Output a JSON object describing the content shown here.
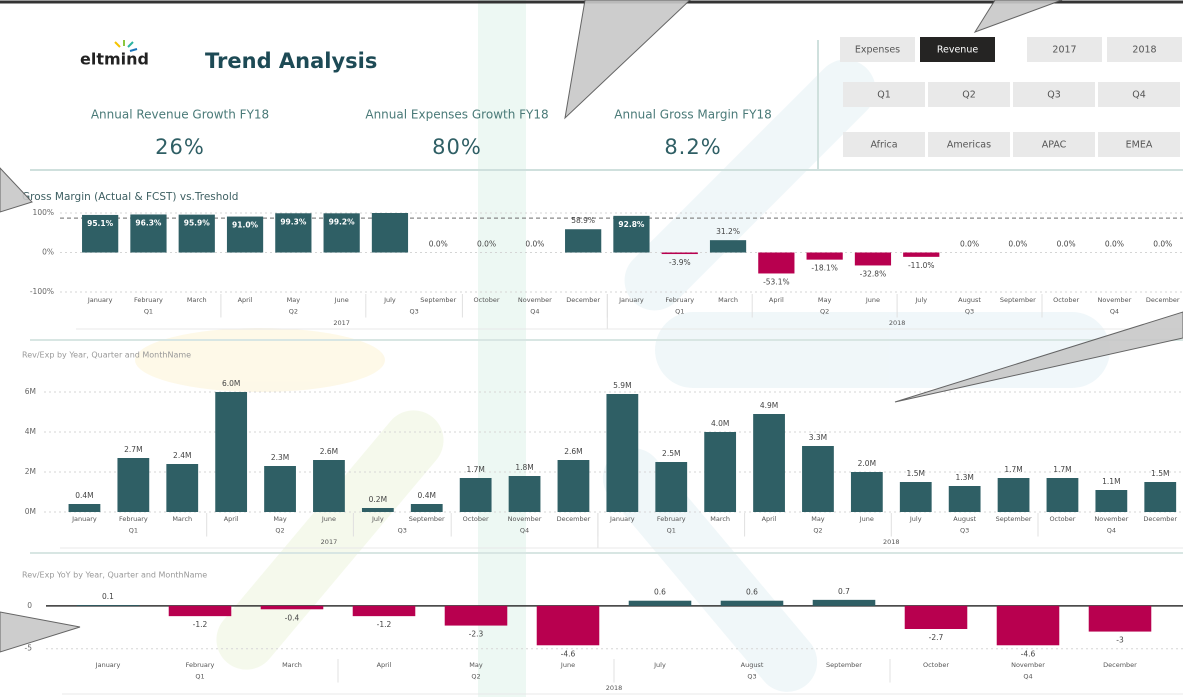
{
  "header": {
    "logo": "eltmind",
    "title": "Trend Analysis"
  },
  "kpis": [
    {
      "label": "Annual Revenue Growth FY18",
      "value": "26%"
    },
    {
      "label": "Annual Expenses Growth FY18",
      "value": "80%"
    },
    {
      "label": "Annual Gross Margin FY18",
      "value": "8.2%"
    }
  ],
  "slicers": [
    {
      "options": [
        "Expenses",
        "Revenue"
      ],
      "selected": "Revenue"
    },
    {
      "options": [
        "2017",
        "2018"
      ]
    },
    {
      "options": [
        "Q1",
        "Q2",
        "Q3",
        "Q4"
      ]
    },
    {
      "options": [
        "Africa",
        "Americas",
        "APAC",
        "EMEA"
      ]
    }
  ],
  "chart_data": [
    {
      "type": "bar",
      "title": "Gross Margin (Actual & FCST) vs.Treshold",
      "categories": [
        [
          "January",
          "Q1",
          "2017"
        ],
        [
          "February",
          "Q1",
          "2017"
        ],
        [
          "March",
          "Q1",
          "2017"
        ],
        [
          "April",
          "Q2",
          "2017"
        ],
        [
          "May",
          "Q2",
          "2017"
        ],
        [
          "June",
          "Q2",
          "2017"
        ],
        [
          "July",
          "Q3",
          "2017"
        ],
        [
          "September",
          "Q3",
          "2017"
        ],
        [
          "October",
          "Q4",
          "2017"
        ],
        [
          "November",
          "Q4",
          "2017"
        ],
        [
          "December",
          "Q4",
          "2017"
        ],
        [
          "January",
          "Q1",
          "2018"
        ],
        [
          "February",
          "Q1",
          "2018"
        ],
        [
          "March",
          "Q1",
          "2018"
        ],
        [
          "April",
          "Q2",
          "2018"
        ],
        [
          "May",
          "Q2",
          "2018"
        ],
        [
          "June",
          "Q2",
          "2018"
        ],
        [
          "July",
          "Q3",
          "2018"
        ],
        [
          "August",
          "Q3",
          "2018"
        ],
        [
          "September",
          "Q3",
          "2018"
        ],
        [
          "October",
          "Q4",
          "2018"
        ],
        [
          "November",
          "Q4",
          "2018"
        ],
        [
          "December",
          "Q4",
          "2018"
        ]
      ],
      "values": [
        95.1,
        96.3,
        95.9,
        91.0,
        99.3,
        99.2,
        100,
        0,
        0,
        0,
        58.9,
        92.8,
        -3.9,
        31.2,
        -53.1,
        -18.1,
        -32.8,
        -11.0,
        0,
        0,
        0,
        0,
        0
      ],
      "value_labels": [
        "95.1%",
        "96.3%",
        "95.9%",
        "91.0%",
        "99.3%",
        "99.2%",
        null,
        "0.0%",
        "0.0%",
        "0.0%",
        "58.9%",
        "92.8%",
        "-3.9%",
        "31.2%",
        "-53.1%",
        "-18.1%",
        "-32.8%",
        "-11.0%",
        "0.0%",
        "0.0%",
        "0.0%",
        "0.0%",
        "0.0%"
      ],
      "threshold": 87,
      "colors": {
        "positive": "#2f5f65",
        "negative": "#b8004f"
      },
      "ylim": [
        -100,
        100
      ],
      "yticks": [
        {
          "value": -100,
          "label": "-100%"
        },
        {
          "value": 0,
          "label": "0%"
        },
        {
          "value": 100,
          "label": "100%"
        }
      ],
      "grid": true
    },
    {
      "type": "bar",
      "title": "Rev/Exp by Year, Quarter and MonthName",
      "categories": [
        [
          "January",
          "Q1",
          "2017"
        ],
        [
          "February",
          "Q1",
          "2017"
        ],
        [
          "March",
          "Q1",
          "2017"
        ],
        [
          "April",
          "Q2",
          "2017"
        ],
        [
          "May",
          "Q2",
          "2017"
        ],
        [
          "June",
          "Q2",
          "2017"
        ],
        [
          "July",
          "Q3",
          "2017"
        ],
        [
          "September",
          "Q3",
          "2017"
        ],
        [
          "October",
          "Q4",
          "2017"
        ],
        [
          "November",
          "Q4",
          "2017"
        ],
        [
          "December",
          "Q4",
          "2017"
        ],
        [
          "January",
          "Q1",
          "2018"
        ],
        [
          "February",
          "Q1",
          "2018"
        ],
        [
          "March",
          "Q1",
          "2018"
        ],
        [
          "April",
          "Q2",
          "2018"
        ],
        [
          "May",
          "Q2",
          "2018"
        ],
        [
          "June",
          "Q2",
          "2018"
        ],
        [
          "July",
          "Q3",
          "2018"
        ],
        [
          "August",
          "Q3",
          "2018"
        ],
        [
          "September",
          "Q3",
          "2018"
        ],
        [
          "October",
          "Q4",
          "2018"
        ],
        [
          "November",
          "Q4",
          "2018"
        ],
        [
          "December",
          "Q4",
          "2018"
        ]
      ],
      "values": [
        0.4,
        2.7,
        2.4,
        6.0,
        2.3,
        2.6,
        0.2,
        0.4,
        1.7,
        1.8,
        2.6,
        5.9,
        2.5,
        4.0,
        4.9,
        3.3,
        2.0,
        1.5,
        1.3,
        1.7,
        1.7,
        1.1,
        1.5
      ],
      "value_labels": [
        "0.4M",
        "2.7M",
        "2.4M",
        "6.0M",
        "2.3M",
        "2.6M",
        "0.2M",
        "0.4M",
        "1.7M",
        "1.8M",
        "2.6M",
        "5.9M",
        "2.5M",
        "4.0M",
        "4.9M",
        "3.3M",
        "2.0M",
        "1.5M",
        "1.3M",
        "1.7M",
        "1.7M",
        "1.1M",
        "1.5M"
      ],
      "colors": {
        "positive": "#2f5f65"
      },
      "ylim": [
        0,
        6.5
      ],
      "yticks": [
        {
          "value": 0,
          "label": "0M"
        },
        {
          "value": 2,
          "label": "2M"
        },
        {
          "value": 4,
          "label": "4M"
        },
        {
          "value": 6,
          "label": "6M"
        }
      ],
      "grid": true
    },
    {
      "type": "bar",
      "title": "Rev/Exp YoY by Year, Quarter and MonthName",
      "categories": [
        [
          "January",
          "Q1",
          "2018"
        ],
        [
          "February",
          "Q1",
          "2018"
        ],
        [
          "March",
          "Q1",
          "2018"
        ],
        [
          "April",
          "Q2",
          "2018"
        ],
        [
          "May",
          "Q2",
          "2018"
        ],
        [
          "June",
          "Q2",
          "2018"
        ],
        [
          "July",
          "Q3",
          "2018"
        ],
        [
          "August",
          "Q3",
          "2018"
        ],
        [
          "September",
          "Q3",
          "2018"
        ],
        [
          "October",
          "Q4",
          "2018"
        ],
        [
          "November",
          "Q4",
          "2018"
        ],
        [
          "December",
          "Q4",
          "2018"
        ]
      ],
      "values": [
        0.1,
        -1.2,
        -0.4,
        -1.2,
        -2.3,
        -4.6,
        0.6,
        0.6,
        0.7,
        -2.7,
        -4.6,
        -3.0
      ],
      "colors": {
        "positive": "#2f5f65",
        "negative": "#b8004f"
      },
      "ylim": [
        -5.5,
        1.5
      ],
      "yticks": [
        -5,
        0
      ],
      "grid": true
    }
  ]
}
